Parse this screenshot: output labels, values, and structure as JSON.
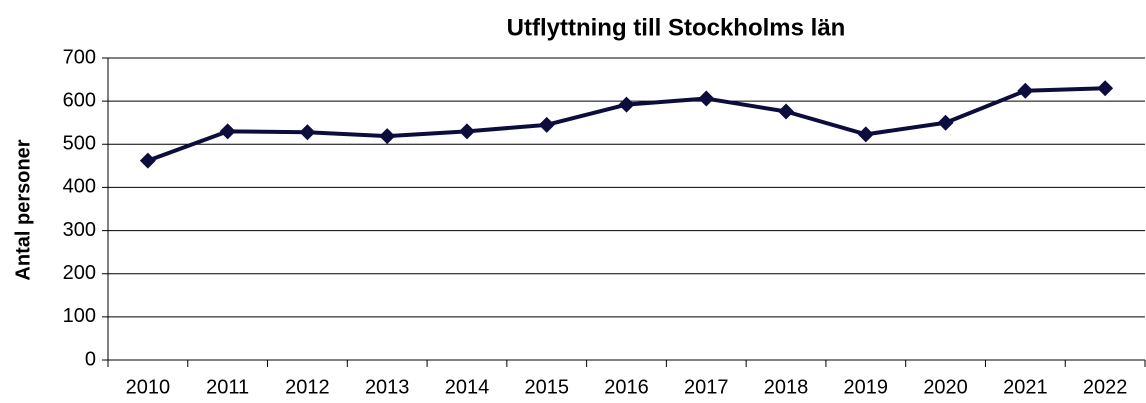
{
  "chart_data": {
    "type": "line",
    "title": "Utflyttning till Stockholms län",
    "ylabel": "Antal personer",
    "categories": [
      "2010",
      "2011",
      "2012",
      "2013",
      "2014",
      "2015",
      "2016",
      "2017",
      "2018",
      "2019",
      "2020",
      "2021",
      "2022"
    ],
    "values": [
      462,
      530,
      528,
      519,
      530,
      545,
      592,
      606,
      576,
      523,
      550,
      624,
      630
    ],
    "color": "#0d0d3d",
    "ylim": [
      0,
      700
    ],
    "yticks": [
      0,
      100,
      200,
      300,
      400,
      500,
      600,
      700
    ],
    "grid": true
  }
}
